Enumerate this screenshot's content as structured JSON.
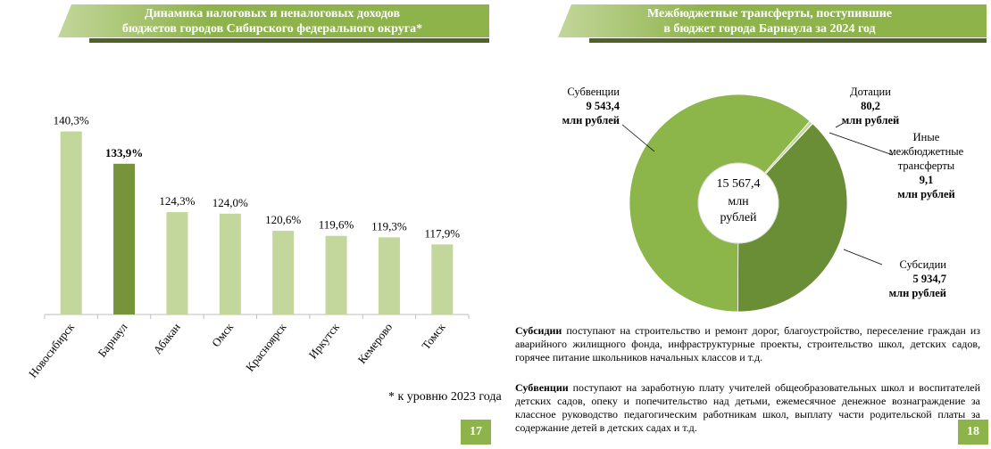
{
  "chart_data": [
    {
      "type": "bar",
      "title": [
        "Динамика налоговых и неналоговых доходов",
        "бюджетов городов Сибирского федерального округа*"
      ],
      "categories": [
        "Новосибирск",
        "Барнаул",
        "Абакан",
        "Омск",
        "Красноярск",
        "Иркутск",
        "Кемерово",
        "Томск"
      ],
      "values": [
        140.3,
        133.9,
        124.3,
        124.0,
        120.6,
        119.6,
        119.3,
        117.9
      ],
      "value_labels": [
        "140,3%",
        "133,9%",
        "124,3%",
        "124,0%",
        "120,6%",
        "119,6%",
        "119,3%",
        "117,9%"
      ],
      "colors": [
        "#c3d69b",
        "#77933c",
        "#c3d69b",
        "#c3d69b",
        "#c3d69b",
        "#c3d69b",
        "#c3d69b",
        "#c3d69b"
      ],
      "highlight": 1,
      "ylim": [
        104,
        145
      ],
      "note": "* к уровню 2023 года"
    },
    {
      "type": "donut",
      "title": [
        "Межбюджетные трансферты, поступившие",
        "в бюджет города Барнаула за 2024 год"
      ],
      "categories": [
        "Дотации",
        "Иные межбюджетные трансферты",
        "Субсидии",
        "Субвенции"
      ],
      "values": [
        80.2,
        9.1,
        5934.7,
        9543.4
      ],
      "value_labels": [
        "80,2",
        "9,1",
        "5 934,7",
        "9 543,4"
      ],
      "unit": "млн рублей",
      "colors": [
        "#c3d69b",
        "#9bbb59",
        "#6a8e35",
        "#8cb54a"
      ],
      "total": {
        "value": 15567.4,
        "label": "15 567,4"
      },
      "total_unit": [
        "млн",
        "рублей"
      ]
    }
  ],
  "paragraphs": [
    {
      "term": "Субсидии",
      "text": "поступают на строительство и ремонт дорог, благоустройство, переселение граждан из аварийного жилищного фонда, инфраструктурные проекты, строительство школ, детских садов, горячее питание школьников начальных классов и т.д."
    },
    {
      "term": "Субвенции",
      "text": "поступают на заработную плату учителей общеобразовательных школ и воспитателей детских садов, опеку и попечительство над детьми, ежемесячное денежное вознаграждение за классное руководство педагогическим работникам школ, выплату части родительской платы за содержание детей в детских садах и т.д."
    }
  ],
  "page_numbers": [
    "17",
    "18"
  ]
}
